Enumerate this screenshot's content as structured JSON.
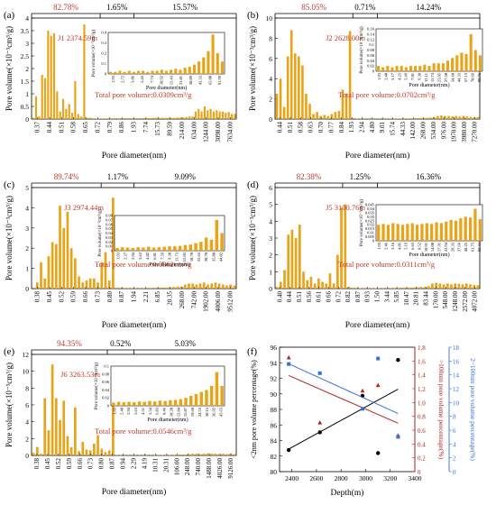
{
  "chart_data": [
    {
      "panel": "(a)",
      "type": "bar",
      "color": "#E8A317",
      "ylabel": "Pore volume(×10⁻³cm³/g)",
      "xlabel": "Pore diameter(nm)",
      "ylim": [
        0,
        4
      ],
      "yticks": [
        "0",
        "0.5",
        "1",
        "1.5",
        "2",
        "2.5",
        "3",
        "3.5",
        "4"
      ],
      "ytick_values": [
        0,
        0.5,
        1,
        1.5,
        2,
        2.5,
        3,
        3.5,
        4
      ],
      "xticks": [
        "0.37",
        "0.44",
        "0.51",
        "0.58",
        "0.65",
        "0.72",
        "0.79",
        "0.86",
        "1.93",
        "7.74",
        "15.73",
        "89.59",
        "214.00",
        "634.00",
        "1244.00",
        "3098.00",
        "7634.00"
      ],
      "percents": [
        "82.78%",
        "1.65%",
        "15.57%"
      ],
      "region_splits": [
        0.335,
        0.5
      ],
      "sample": "J1  2374.59m",
      "total": "Total pore volume:0.0309cm³/g",
      "values": [
        0.05,
        0.9,
        0.1,
        1.75,
        1.62,
        3.5,
        3.3,
        3.4,
        1.1,
        0.3,
        0.8,
        0.4,
        0.6,
        0.25,
        1.5,
        0.2,
        0.1,
        3.75,
        0.05,
        0.05,
        0.03,
        0.02,
        0.02,
        0.02,
        0.02,
        0.03,
        0.03,
        0.03,
        0.03,
        0.03,
        0.03,
        0.03,
        0.03,
        0.03,
        0.03,
        0.03,
        0.03,
        0.04,
        0.04,
        0.04,
        0.05,
        0.05,
        0.05,
        0.05,
        0.05,
        0.05,
        0.05,
        0.05,
        0.06,
        0.06,
        0.06,
        0.08,
        0.1,
        0.1,
        0.3,
        0.4,
        0.3,
        0.5,
        0.35,
        0.4,
        0.3,
        0.35,
        0.3,
        0.3,
        0.25,
        0.28,
        0.2,
        0.2
      ],
      "inset": {
        "ylabel": "Pore volume(×10⁻³cm³/g)",
        "xlabel": "Pore diameter(nm)",
        "ylim": [
          0,
          0.4
        ],
        "yticks": [
          "0",
          "0.1",
          "0.2",
          "0.3",
          "0.4"
        ],
        "ytick_values": [
          0,
          0.1,
          0.2,
          0.3,
          0.4
        ],
        "xticks": [
          "1.93",
          "2.72",
          "3.86",
          "5.45",
          "7.74",
          "10.92",
          "15.43",
          "21.81",
          "30.89",
          "43.33",
          "65.00",
          "91.99"
        ],
        "values": [
          0.02,
          0.02,
          0.03,
          0.02,
          0.03,
          0.02,
          0.03,
          0.03,
          0.02,
          0.03,
          0.03,
          0.04,
          0.03,
          0.04,
          0.05,
          0.04,
          0.06,
          0.07,
          0.09,
          0.12,
          0.16,
          0.22,
          0.38,
          0.2,
          0.12
        ]
      }
    },
    {
      "panel": "(b)",
      "type": "bar",
      "color": "#E8A317",
      "ylabel": "Pore volume(×10⁻³cm³/g)",
      "xlabel": "Pore diameter(nm)",
      "ylim": [
        0,
        10
      ],
      "yticks": [
        "0",
        "2",
        "4",
        "6",
        "8",
        "10"
      ],
      "ytick_values": [
        0,
        2,
        4,
        6,
        8,
        10
      ],
      "xticks": [
        "0.44",
        "0.51",
        "0.58",
        "0.63",
        "0.70",
        "0.77",
        "0.84",
        "1.93",
        "2.94",
        "4.80",
        "9.01",
        "15.74",
        "44.33",
        "142.00",
        "268.00",
        "534.00",
        "976.00",
        "1970.00",
        "3980.00",
        "7270.00"
      ],
      "percents": [
        "85.05%",
        "0.71%",
        "14.24%"
      ],
      "region_splits": [
        0.38,
        0.5
      ],
      "sample": "J2  2628.00m",
      "total": "Total pore volume:0.0702cm³/g",
      "values": [
        2.5,
        4,
        1.2,
        6.2,
        8.8,
        6.5,
        6.2,
        5.3,
        2.5,
        1.5,
        0.5,
        0.7,
        0.3,
        0.4,
        0.3,
        0.5,
        0.7,
        0.8,
        2.9,
        2.5,
        8.7,
        0.1,
        0.05,
        0.04,
        0.03,
        0.03,
        0.03,
        0.03,
        0.03,
        0.03,
        0.03,
        0.04,
        0.04,
        0.05,
        0.05,
        0.06,
        0.06,
        0.07,
        0.08,
        0.1,
        0.1,
        0.12,
        0.15,
        0.2,
        0.3,
        0.35,
        0.3,
        0.3,
        0.25,
        0.3,
        0.25,
        0.3,
        0.25,
        0.2,
        0.2,
        0.2
      ],
      "inset": {
        "ylabel": "Pore volume(×10⁻³cm³/g)",
        "xlabel": "Pore diameter(nm)",
        "ylim": [
          0,
          0.16
        ],
        "yticks": [
          "0",
          "0.02",
          "0.04",
          "0.06",
          "0.08",
          "0.1",
          "0.12",
          "0.14",
          "0.16"
        ],
        "ytick_values": [
          0,
          0.02,
          0.04,
          0.06,
          0.08,
          0.1,
          0.12,
          0.14,
          0.16
        ],
        "xticks": [
          "1.93",
          "2.48",
          "3.17",
          "4.25",
          "5.49",
          "7.01",
          "9.38",
          "12.11",
          "15.74",
          "21.05",
          "27.50",
          "34.68",
          "44.33",
          "57.13",
          "70.66",
          "99.76"
        ],
        "values": [
          0.02,
          0.015,
          0.02,
          0.015,
          0.02,
          0.02,
          0.015,
          0.02,
          0.02,
          0.02,
          0.025,
          0.02,
          0.03,
          0.03,
          0.03,
          0.04,
          0.05,
          0.06,
          0.07,
          0.065,
          0.14,
          0.08,
          0.06
        ]
      }
    },
    {
      "panel": "(c)",
      "type": "bar",
      "color": "#E8A317",
      "ylabel": "Pore volume(×10⁻³cm³/g)",
      "xlabel": "Pore diameter(nm)",
      "ylim": [
        0,
        5
      ],
      "yticks": [
        "0",
        "1",
        "2",
        "3",
        "4",
        "5"
      ],
      "ytick_values": [
        0,
        1,
        2,
        3,
        4,
        5
      ],
      "xticks": [
        "0.38",
        "0.45",
        "0.52",
        "0.59",
        "0.66",
        "0.73",
        "0.80",
        "0.87",
        "1.94",
        "2.21",
        "6.85",
        "20.35",
        "268.00",
        "742.00",
        "1902.00",
        "4006.00",
        "9512.00"
      ],
      "percents": [
        "89.74%",
        "1.17%",
        "9.09%"
      ],
      "region_splits": [
        0.34,
        0.5
      ],
      "sample": "J3  2974.44m",
      "total": "Total pore volume:0.0362cm³/g",
      "values": [
        0.05,
        0.3,
        1.3,
        0.5,
        1.6,
        2.3,
        2.2,
        4.1,
        3.0,
        3.8,
        2.0,
        1.5,
        0.6,
        0.3,
        0.4,
        0.5,
        0.5,
        0.3,
        1.3,
        1.8,
        0.4,
        4.5,
        0.05,
        0.04,
        0.03,
        0.03,
        0.03,
        0.03,
        0.03,
        0.03,
        0.03,
        0.03,
        0.04,
        0.04,
        0.05,
        0.05,
        0.06,
        0.08,
        0.1,
        0.1,
        0.2,
        0.25,
        0.25,
        0.2,
        0.25,
        0.3,
        0.2,
        0.25,
        0.3,
        0.25,
        0.2,
        0.15,
        0.2,
        0.15
      ],
      "inset": {
        "ylabel": "Pore volume(×10⁻³cm³/g)",
        "xlabel": "Pore diameter(nm)",
        "ylim": [
          0,
          0.08
        ],
        "yticks": [
          "0",
          "0.01",
          "0.02",
          "0.03",
          "0.04",
          "0.05",
          "0.06",
          "0.07",
          "0.08"
        ],
        "ytick_values": [
          0,
          0.01,
          0.02,
          0.03,
          0.04,
          0.05,
          0.06,
          0.07,
          0.08
        ],
        "xticks": [
          "1.93",
          "2.37",
          "2.94",
          "3.62",
          "4.82",
          "6.01",
          "7.59",
          "9.38",
          "11.73",
          "15.03",
          "18.78",
          "22.65",
          "28.70",
          "35.88",
          "44.82"
        ],
        "values": [
          0.006,
          0.008,
          0.007,
          0.006,
          0.008,
          0.007,
          0.009,
          0.007,
          0.008,
          0.009,
          0.01,
          0.01,
          0.011,
          0.013,
          0.014,
          0.017,
          0.02,
          0.03,
          0.025,
          0.07,
          0.04
        ]
      }
    },
    {
      "panel": "(d)",
      "type": "bar",
      "color": "#E8A317",
      "ylabel": "Pore volume(×10⁻³cm³/g)",
      "xlabel": "Pore diameter(nm)",
      "ylim": [
        0,
        6
      ],
      "yticks": [
        "0",
        "1",
        "2",
        "3",
        "4",
        "5",
        "6"
      ],
      "ytick_values": [
        0,
        1,
        2,
        3,
        4,
        5,
        6
      ],
      "xticks": [
        "0.40",
        "0.44",
        "0.51",
        "0.56",
        "0.61",
        "0.66",
        "0.72",
        "0.82",
        "0.87",
        "0.93",
        "1.50",
        "3.44",
        "5.85",
        "10.47",
        "20.81",
        "83.44",
        "170.00",
        "548.00",
        "1248.00",
        "2572.00",
        "4072.00"
      ],
      "percents": [
        "82.38%",
        "1.25%",
        "16.36%"
      ],
      "region_splits": [
        0.33,
        0.5
      ],
      "sample": "J5  3100.76m",
      "total": "Total pore volume:0.0311cm³/g",
      "values": [
        0.1,
        0.4,
        1.1,
        3.2,
        3.5,
        3.0,
        3.8,
        1.0,
        0.5,
        0.7,
        0.3,
        0.6,
        0.4,
        0.3,
        0.9,
        0.3,
        2.0,
        4.8,
        5.0,
        0.1,
        0.05,
        0.04,
        0.03,
        0.03,
        0.03,
        0.03,
        0.03,
        0.03,
        0.03,
        0.03,
        0.03,
        0.04,
        0.04,
        0.05,
        0.05,
        0.06,
        0.07,
        0.08,
        0.1,
        0.1,
        0.15,
        0.3,
        0.35,
        0.3,
        0.25,
        0.3,
        0.25,
        0.3,
        0.28,
        0.25,
        0.3,
        0.25,
        0.22,
        0.2
      ],
      "inset": {
        "ylabel": "Pore volume(×10⁻³cm³/g)",
        "xlabel": "Pore diameter(nm)",
        "ylim": [
          0,
          0.045
        ],
        "yticks": [
          "0",
          "0.005",
          "0.01",
          "0.015",
          "0.02",
          "0.025",
          "0.03",
          "0.035",
          "0.04",
          "0.045"
        ],
        "ytick_values": [
          0,
          0.005,
          0.01,
          0.015,
          0.02,
          0.025,
          0.03,
          0.035,
          0.04,
          0.045
        ],
        "xticks": [
          "1.93",
          "2.46",
          "3.16",
          "4.05",
          "5.19",
          "6.65",
          "8.52",
          "10.91",
          "14.00",
          "17.91",
          "22.94",
          "29.35",
          "37.66",
          "48.25",
          "61.75",
          "83.44"
        ],
        "values": [
          0.02,
          0.021,
          0.02,
          0.022,
          0.021,
          0.02,
          0.021,
          0.022,
          0.02,
          0.021,
          0.022,
          0.021,
          0.023,
          0.022,
          0.024,
          0.026,
          0.025,
          0.028,
          0.03,
          0.029,
          0.04,
          0.027
        ]
      }
    },
    {
      "panel": "(e)",
      "type": "bar",
      "color": "#E8A317",
      "ylabel": "Pore volume(×10⁻³cm³/g)",
      "xlabel": "Pore diameter(nm)",
      "ylim": [
        0,
        12
      ],
      "yticks": [
        "0",
        "2",
        "4",
        "6",
        "8",
        "10",
        "12"
      ],
      "ytick_values": [
        0,
        2,
        4,
        6,
        8,
        10,
        12
      ],
      "xticks": [
        "0.38",
        "0.45",
        "0.52",
        "0.59",
        "0.66",
        "0.73",
        "0.80",
        "0.87",
        "0.94",
        "2.29",
        "4.19",
        "10.31",
        "20.31",
        "106.00",
        "248.00",
        "740.00",
        "1488.00",
        "4026.00",
        "9126.00"
      ],
      "percents": [
        "94.35%",
        "0.52%",
        "5.03%"
      ],
      "region_splits": [
        0.37,
        0.5
      ],
      "sample": "J6  3263.53m",
      "total": "Total pore volume:0.0546cm³/g",
      "values": [
        0.3,
        1,
        0.2,
        6.8,
        3.0,
        10.8,
        6.8,
        4.2,
        6.5,
        2.3,
        1.0,
        5.7,
        0.5,
        1.6,
        0.7,
        0.6,
        1.4,
        2.4,
        0.8,
        0.4,
        0.6,
        7.8,
        0.05,
        0.04,
        0.03,
        0.03,
        0.03,
        0.03,
        0.03,
        0.03,
        0.03,
        0.03,
        0.04,
        0.04,
        0.05,
        0.05,
        0.06,
        0.07,
        0.08,
        0.1,
        0.1,
        0.15,
        0.2,
        0.2,
        0.15,
        0.2,
        0.25,
        0.2,
        0.2,
        0.15,
        0.2,
        0.15,
        0.2,
        0.15
      ],
      "inset": {
        "ylabel": "Pore volume(×10⁻³cm³/g)",
        "xlabel": "Pore diameter(nm)",
        "ylim": [
          0,
          0.1
        ],
        "yticks": [
          "0",
          "0.02",
          "0.04",
          "0.06",
          "0.08",
          "0.1"
        ],
        "ytick_values": [
          0,
          0.02,
          0.04,
          0.06,
          0.08,
          0.1
        ],
        "xticks": [
          "1.93",
          "2.40",
          "2.94",
          "3.63",
          "4.51",
          "5.54",
          "6.83",
          "8.46",
          "10.28",
          "12.84",
          "15.87",
          "19.60",
          "24.55",
          "30.15",
          "36.92",
          "45.65"
        ],
        "values": [
          0.008,
          0.01,
          0.009,
          0.01,
          0.009,
          0.011,
          0.01,
          0.012,
          0.011,
          0.013,
          0.012,
          0.014,
          0.015,
          0.017,
          0.02,
          0.025,
          0.03,
          0.035,
          0.04,
          0.05,
          0.085,
          0.05
        ]
      }
    },
    {
      "panel": "(f)",
      "type": "scatter",
      "xlabel": "Depth(m)",
      "ylabel_left": "<2nm pore volume percentage(%)",
      "ylabel_right1": ">100nm pore volume percentage(%)",
      "ylabel_right2": "2~100nm pore volume percentage(%)",
      "xlim": [
        2300,
        3400
      ],
      "xticks": [
        "2400",
        "2600",
        "2800",
        "3000",
        "3200",
        "3400"
      ],
      "xtick_values": [
        2400,
        2600,
        2800,
        3000,
        3200,
        3400
      ],
      "ylim_left": [
        80,
        96
      ],
      "yticks_left": [
        "80",
        "82",
        "84",
        "86",
        "88",
        "90",
        "92",
        "94",
        "96"
      ],
      "ytick_values_left": [
        80,
        82,
        84,
        86,
        88,
        90,
        92,
        94,
        96
      ],
      "ylim_right1": [
        0,
        1.8
      ],
      "yticks_right1": [
        "0",
        "0.2",
        "0.4",
        "0.6",
        "0.8",
        "1.0",
        "1.2",
        "1.4",
        "1.6",
        "1.8"
      ],
      "ytick_values_right1": [
        0,
        0.2,
        0.4,
        0.6,
        0.8,
        1.0,
        1.2,
        1.4,
        1.6,
        1.8
      ],
      "ylim_right2": [
        0,
        18
      ],
      "yticks_right2": [
        "0",
        "2",
        "4",
        "6",
        "8",
        "10",
        "12",
        "14",
        "16",
        "18"
      ],
      "ytick_values_right2": [
        0,
        2,
        4,
        6,
        8,
        10,
        12,
        14,
        16,
        18
      ],
      "color_black": "#000000",
      "color_red": "#B22222",
      "color_blue": "#3A6FD8",
      "series": [
        {
          "axis": "left",
          "marker": "circle",
          "color": "#000000",
          "x": [
            2374.59,
            2628.0,
            2974.44,
            3100.76,
            3263.53
          ],
          "y": [
            82.78,
            85.05,
            89.74,
            82.38,
            94.35
          ],
          "fit": [
            [
              2374.59,
              82.9
            ],
            [
              3263.53,
              90.6
            ]
          ]
        },
        {
          "axis": "right1",
          "marker": "triangle",
          "color": "#B22222",
          "x": [
            2374.59,
            2628.0,
            2974.44,
            3100.76,
            3263.53
          ],
          "y": [
            1.65,
            0.71,
            1.17,
            1.25,
            0.52
          ],
          "fit": [
            [
              2374.59,
              1.39
            ],
            [
              3263.53,
              0.7
            ]
          ]
        },
        {
          "axis": "right2",
          "marker": "square",
          "color": "#3A6FD8",
          "x": [
            2374.59,
            2628.0,
            2974.44,
            3100.76,
            3263.53
          ],
          "y": [
            15.57,
            14.24,
            9.09,
            16.36,
            5.03
          ],
          "fit": [
            [
              2374.59,
              15.6
            ],
            [
              3263.53,
              8.4
            ]
          ]
        }
      ]
    }
  ]
}
